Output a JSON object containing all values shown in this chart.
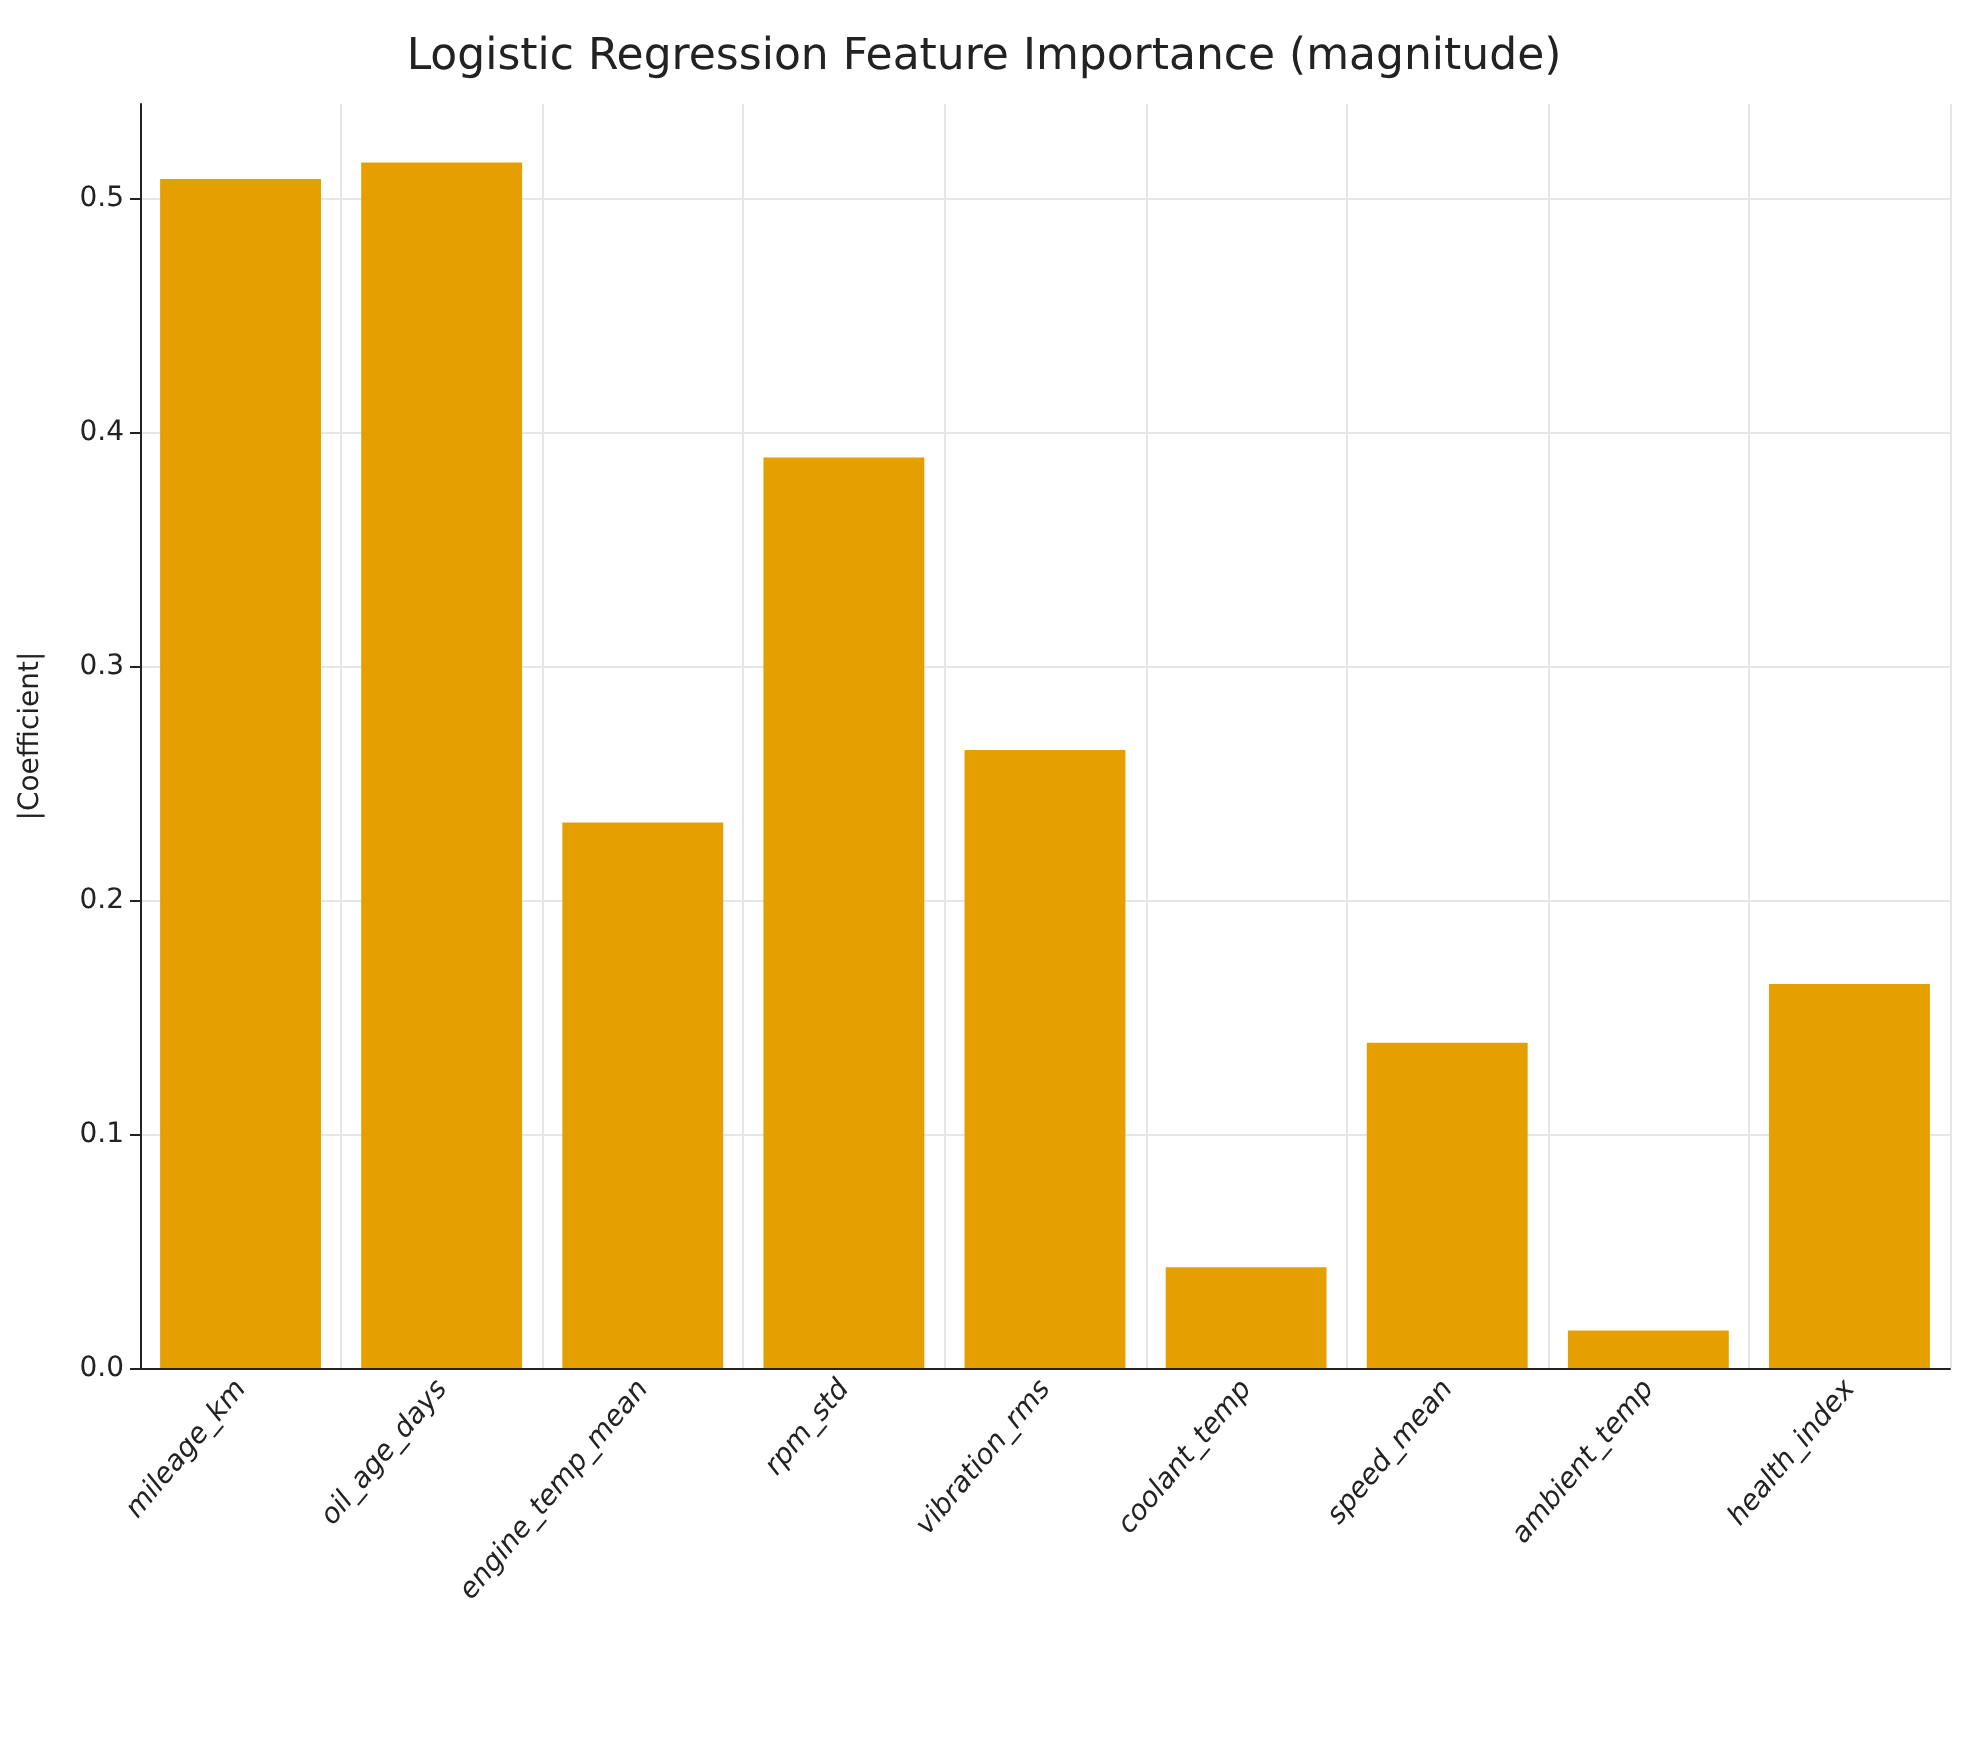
{
  "chart_data": {
    "type": "bar",
    "title": "Logistic Regression Feature Importance (magnitude)",
    "ylabel": "|Coefficient|",
    "categories": [
      "mileage_km",
      "oil_age_days",
      "engine_temp_mean",
      "rpm_std",
      "vibration_rms",
      "coolant_temp",
      "speed_mean",
      "ambient_temp",
      "health_index"
    ],
    "values": [
      0.508,
      0.515,
      0.233,
      0.389,
      0.264,
      0.043,
      0.139,
      0.016,
      0.164
    ],
    "color": "#e69f00",
    "ylim": [
      0,
      0.54
    ],
    "yticks": [
      {
        "value": 0,
        "label": "0.0"
      },
      {
        "value": 0.1,
        "label": "0.1"
      },
      {
        "value": 0.2,
        "label": "0.2"
      },
      {
        "value": 0.3,
        "label": "0.3"
      },
      {
        "value": 0.4,
        "label": "0.4"
      },
      {
        "value": 0.5,
        "label": "0.5"
      }
    ],
    "grid": true
  }
}
